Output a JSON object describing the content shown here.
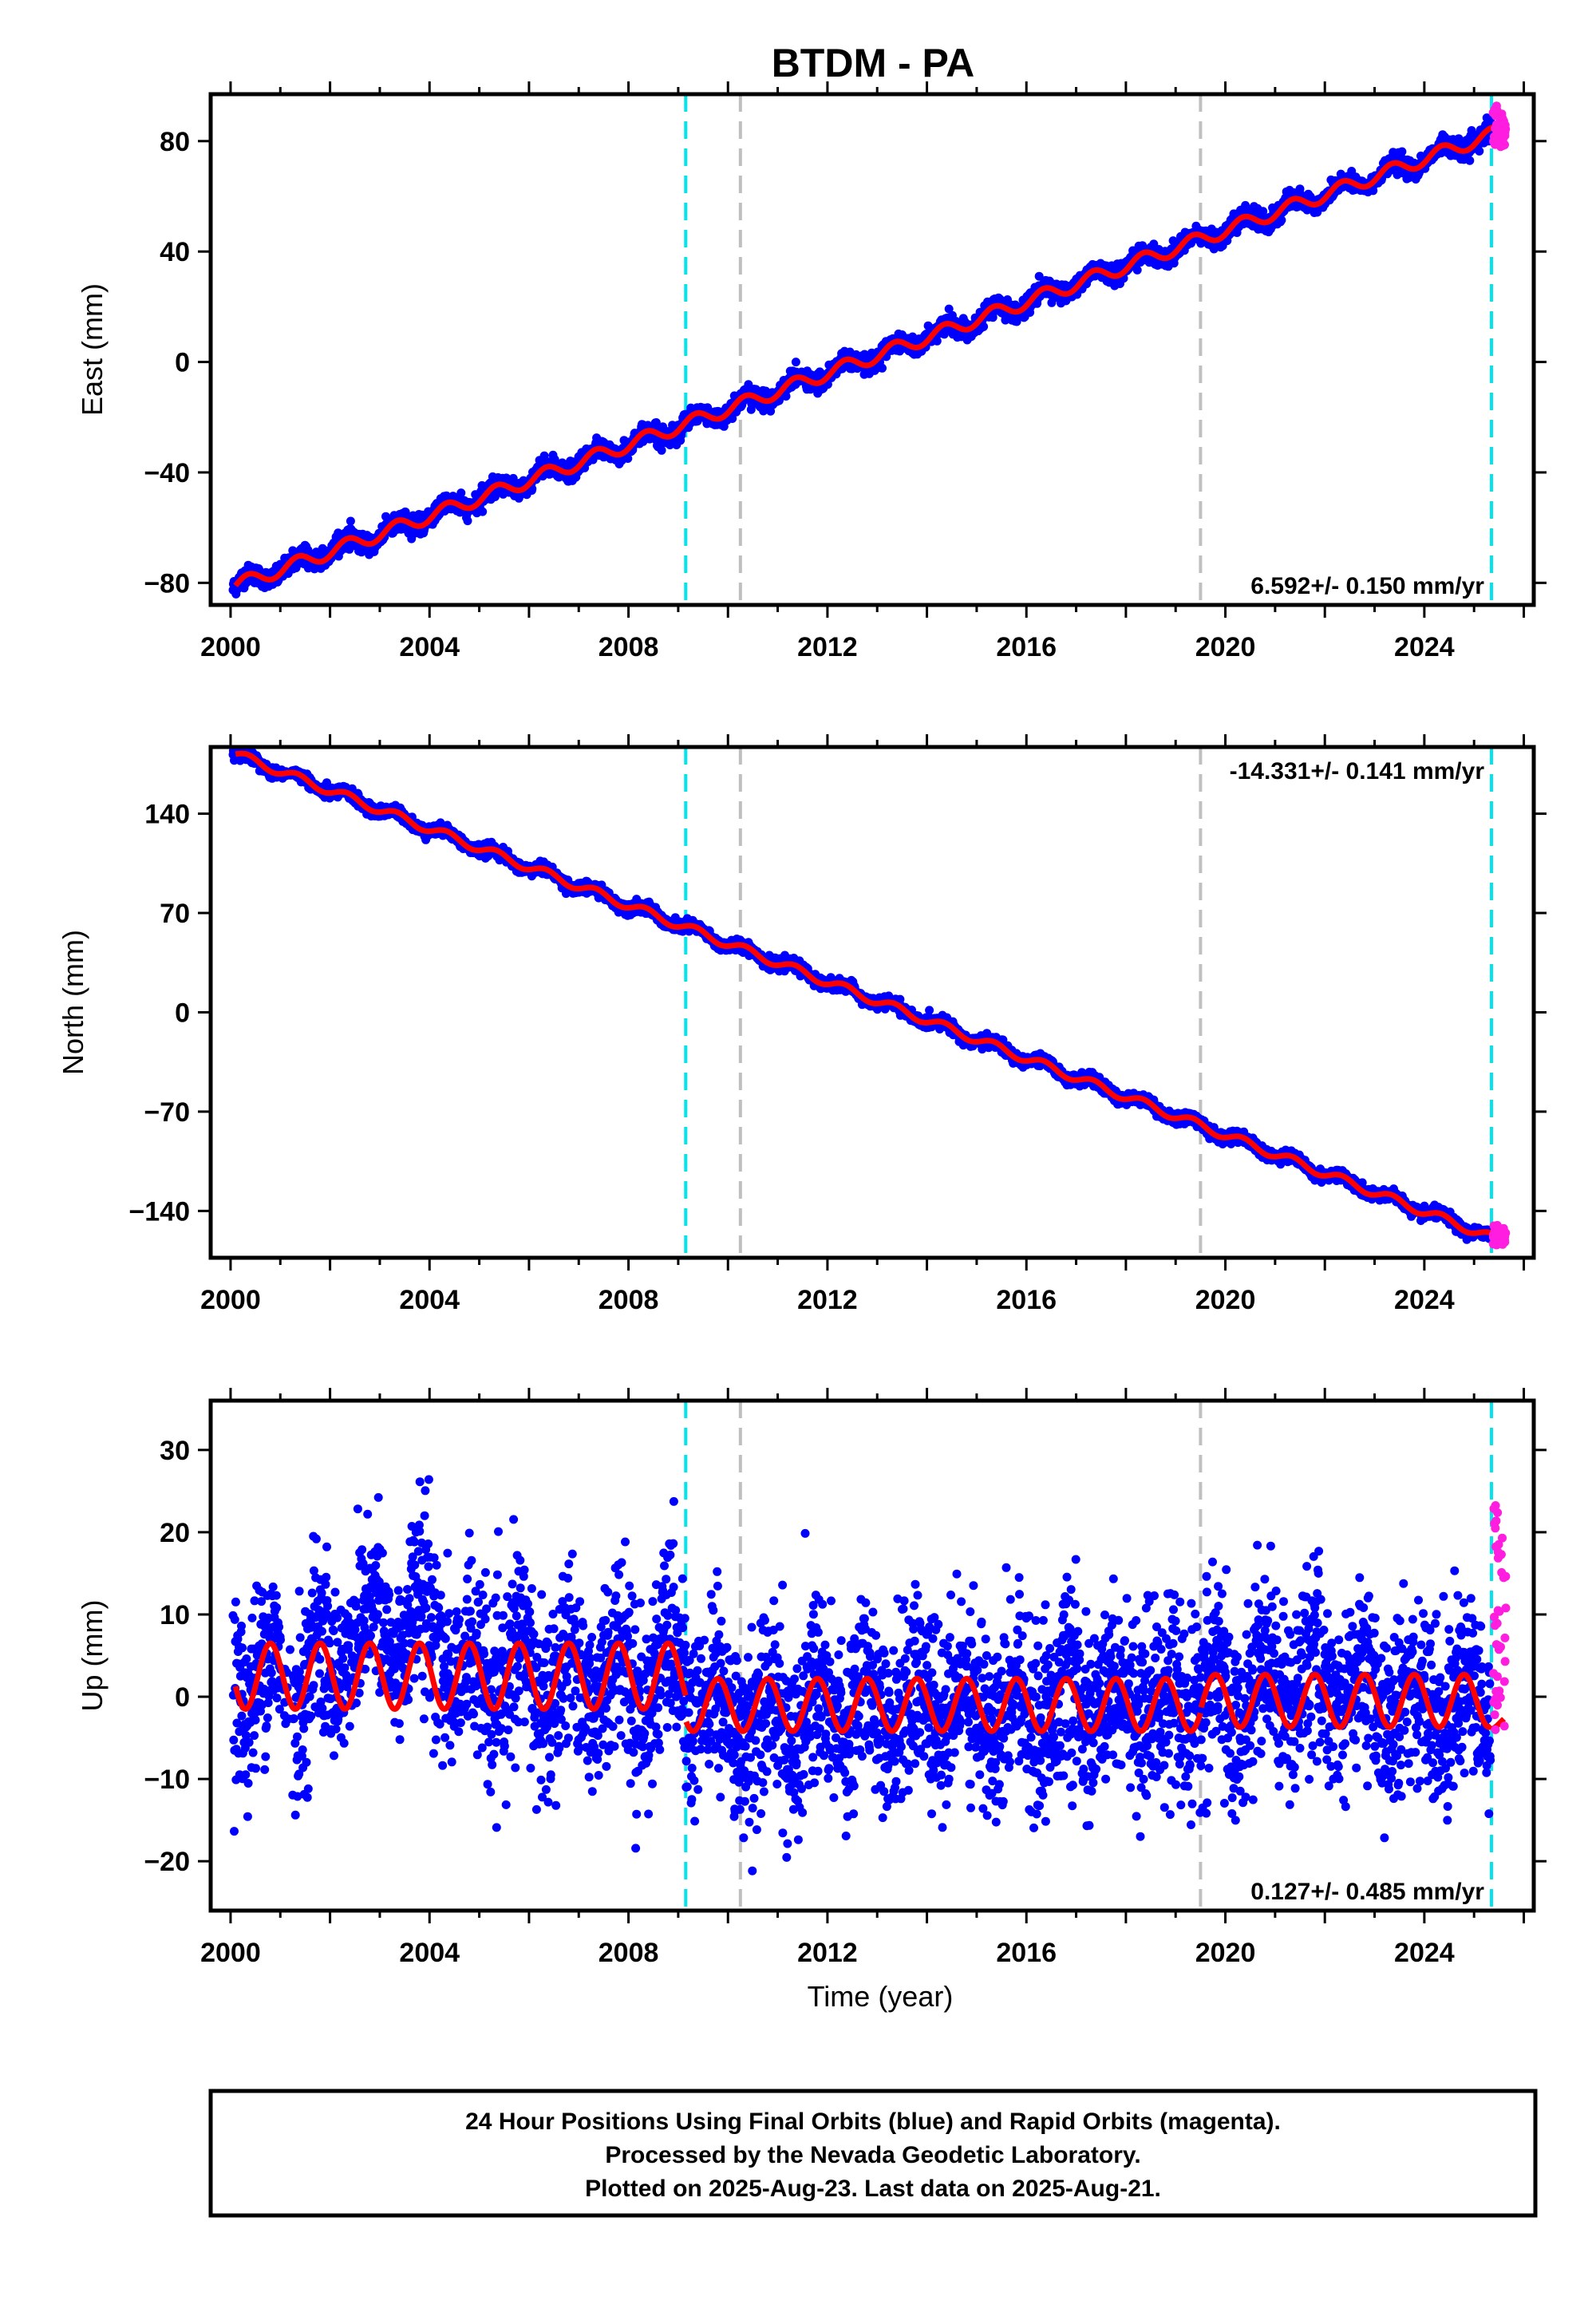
{
  "title": "BTDM - PA",
  "colors": {
    "final_orbits": "#0000ff",
    "rapid_orbits": "#ff1de0",
    "model": "#ff0000",
    "equipment_change": "#00e5ee",
    "other_event": "#bfbfbf"
  },
  "footer": {
    "line1": "24 Hour Positions Using Final Orbits (blue) and Rapid Orbits (magenta).",
    "line2": "Processed by the Nevada Geodetic Laboratory.",
    "line3": "Plotted on 2025-Aug-23. Last data on 2025-Aug-21."
  },
  "chart_data": [
    {
      "type": "scatter",
      "panel": "east",
      "ylabel": "East (mm)",
      "xlabel": "",
      "xlim": [
        1999.6,
        2026.2
      ],
      "ylim": [
        -88,
        97
      ],
      "x_ticks": [
        2000,
        2004,
        2008,
        2012,
        2016,
        2020,
        2024
      ],
      "y_ticks": [
        -80,
        -40,
        0,
        40,
        80
      ],
      "rate_label": "6.592+/- 0.150 mm/yr",
      "rate_position": "bottom-right",
      "event_lines": [
        {
          "x": 2009.15,
          "kind": "equipment_change"
        },
        {
          "x": 2010.25,
          "kind": "other_event"
        },
        {
          "x": 2019.5,
          "kind": "other_event"
        },
        {
          "x": 2025.35,
          "kind": "equipment_change"
        }
      ],
      "trend": {
        "t0": 2000.1,
        "t1": 2025.3,
        "y0": -81,
        "y1": 82
      },
      "seasonal_amplitude": 2.5,
      "scatter_sigma": 1.6,
      "rapid_points": {
        "x0": 2025.38,
        "x1": 2025.64,
        "y_min": 78,
        "y_max": 93
      },
      "grid": false
    },
    {
      "type": "scatter",
      "panel": "north",
      "ylabel": "North (mm)",
      "xlabel": "",
      "xlim": [
        1999.6,
        2026.2
      ],
      "ylim": [
        -173,
        187
      ],
      "x_ticks": [
        2000,
        2004,
        2008,
        2012,
        2016,
        2020,
        2024
      ],
      "y_ticks": [
        -140,
        -70,
        0,
        70,
        140
      ],
      "rate_label": "-14.331+/- 0.141 mm/yr",
      "rate_position": "top-right",
      "event_lines": [
        {
          "x": 2009.15,
          "kind": "equipment_change"
        },
        {
          "x": 2010.25,
          "kind": "other_event"
        },
        {
          "x": 2019.5,
          "kind": "other_event"
        },
        {
          "x": 2025.35,
          "kind": "equipment_change"
        }
      ],
      "trend": {
        "t0": 2000.1,
        "t1": 2025.3,
        "y0": 182,
        "y1": -158
      },
      "seasonal_amplitude": 3,
      "scatter_sigma": 2,
      "rapid_points": {
        "x0": 2025.38,
        "x1": 2025.64,
        "y_min": -165,
        "y_max": -150
      },
      "grid": false
    },
    {
      "type": "scatter",
      "panel": "up",
      "ylabel": "Up (mm)",
      "xlabel": "Time (year)",
      "xlim": [
        1999.6,
        2026.2
      ],
      "ylim": [
        -26,
        36
      ],
      "x_ticks": [
        2000,
        2004,
        2008,
        2012,
        2016,
        2020,
        2024
      ],
      "y_ticks": [
        -20,
        -10,
        0,
        10,
        20,
        30
      ],
      "rate_label": "0.127+/- 0.485 mm/yr",
      "rate_position": "bottom-right",
      "event_lines": [
        {
          "x": 2009.15,
          "kind": "equipment_change"
        },
        {
          "x": 2010.25,
          "kind": "other_event"
        },
        {
          "x": 2019.5,
          "kind": "other_event"
        },
        {
          "x": 2025.35,
          "kind": "equipment_change"
        }
      ],
      "model_segments": [
        {
          "t0": 2000.0,
          "t1": 2009.15,
          "offset": 2.5,
          "amplitude": 4
        },
        {
          "t0": 2009.15,
          "t1": 2019.5,
          "offset": -1,
          "amplitude": 3.2
        },
        {
          "t0": 2019.5,
          "t1": 2025.35,
          "offset": -0.5,
          "amplitude": 3.2
        },
        {
          "t0": 2025.35,
          "t1": 2025.6,
          "offset": -3,
          "amplitude": 1
        }
      ],
      "scatter_sigma": 5.5,
      "rapid_points": {
        "x0": 2025.38,
        "x1": 2025.64,
        "y_min": -6,
        "y_max": 24
      },
      "grid": false
    }
  ]
}
